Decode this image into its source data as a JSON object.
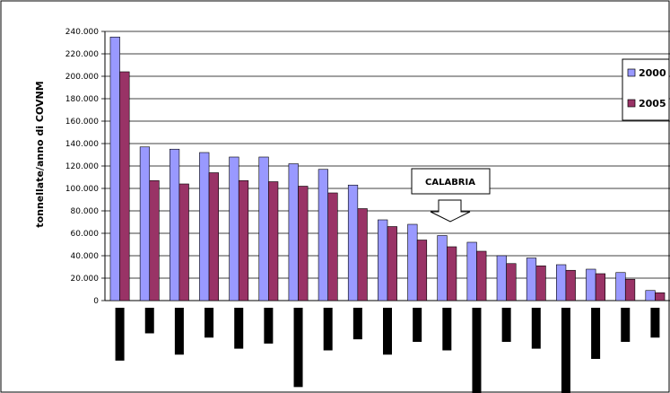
{
  "chart_data": {
    "type": "bar",
    "ylabel": "tonnellate/anno di COVNM",
    "ylim": [
      0,
      240000
    ],
    "yticks": [
      "0",
      "20.000",
      "40.000",
      "60.000",
      "80.000",
      "100.000",
      "120.000",
      "140.000",
      "160.000",
      "180.000",
      "200.000",
      "220.000",
      "240.000"
    ],
    "grid": true,
    "legend_position": "top-right",
    "series": [
      {
        "name": "2000",
        "color": "#9999ff",
        "values": [
          235000,
          137000,
          135000,
          132000,
          128000,
          128000,
          122000,
          117000,
          103000,
          72000,
          68000,
          58000,
          52000,
          40000,
          38000,
          32000,
          28000,
          25000,
          9000
        ]
      },
      {
        "name": "2005",
        "color": "#993366",
        "values": [
          204000,
          107000,
          104000,
          114000,
          107000,
          106000,
          102000,
          96000,
          82000,
          66000,
          54000,
          48000,
          44000,
          33000,
          31000,
          27000,
          24000,
          19000,
          7000
        ]
      }
    ],
    "category_label_heights_relative": [
      0.62,
      0.3,
      0.55,
      0.35,
      0.48,
      0.42,
      0.93,
      0.5,
      0.37,
      0.55,
      0.4,
      0.5,
      1.0,
      0.4,
      0.48,
      1.0,
      0.6,
      0.4,
      0.35
    ],
    "annotation": {
      "text": "CALABRIA",
      "category_index": 11
    }
  }
}
